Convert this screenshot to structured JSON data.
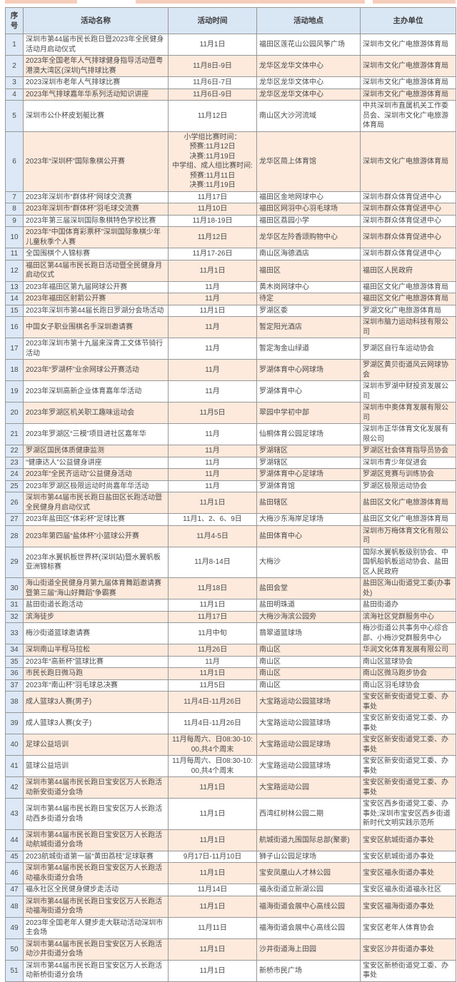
{
  "colors": {
    "banner": "#f6cdbb",
    "header_bg": "#d9e6f4",
    "index_bg": "#dce8f6",
    "stripe_bg": "#fdeadd",
    "border": "#979797",
    "text": "#4a4a4a"
  },
  "table": {
    "headers": {
      "no": "序号",
      "name": "活动名称",
      "time": "活动时间",
      "place": "活动地点",
      "org": "主办单位"
    },
    "rows": [
      {
        "no": "1",
        "name": "深圳市第44届市民长跑日暨2023年全民健身活动月启动仪式",
        "time": "11月1日",
        "place": "福田区莲花山公园风筝广场",
        "org": "深圳市文化广电旅游体育局"
      },
      {
        "no": "2",
        "name": "2023年全国老年人气排球健身指导活动暨粤港澳大湾区(深圳)气排球比赛",
        "time": "11月8日-9日",
        "place": "龙华区龙华文体中心",
        "org": "深圳市文化广电旅游体育局"
      },
      {
        "no": "3",
        "name": "2023深圳市老年人气排球比赛",
        "time": "11月6日-7日",
        "place": "龙华区龙华文体中心",
        "org": "深圳市文化广电旅游体育局"
      },
      {
        "no": "4",
        "name": "2023年气排球嘉年华系列活动知识讲座",
        "time": "11月6日-9日",
        "place": "龙华区龙华文体中心",
        "org": "深圳市文化广电旅游体育局"
      },
      {
        "no": "5",
        "name": "深圳市公仆杯皮划艇比赛",
        "time": "11月12日",
        "place": "南山区大沙河流域",
        "org": "中共深圳市直属机关工作委员会、深圳市文化广电旅游体育局"
      },
      {
        "no": "6",
        "name": "2023年“深圳杯”国际象棋公开赛",
        "time": "小学组比赛时间：\n预赛:11月12日\n决赛:11月19日\n中学组、成人组比赛时间:\n预赛:11月11日\n决赛:11月19日",
        "place": "龙华区简上体育馆",
        "org": "深圳市文化广电旅游体育局"
      },
      {
        "no": "7",
        "name": "2023年深圳市“群体杯”网球交流赛",
        "time": "11月17日",
        "place": "福田区金地网球中心",
        "org": "深圳市群众体育促进中心"
      },
      {
        "no": "8",
        "name": "2023年深圳市“群体杯”羽毛球交流赛",
        "time": "11月10日",
        "place": "福田区网羽中心羽毛球场",
        "org": "深圳市群众体育促进中心"
      },
      {
        "no": "9",
        "name": "2023年第三届深圳国际象棋特色学校比赛",
        "time": "11月18-19日",
        "place": "福田区荔园小学",
        "org": "深圳市群众体育促进中心"
      },
      {
        "no": "10",
        "name": "2023年“中国体育彩票杯”深圳国际象棋少年儿童秋季个人赛",
        "time": "11月12日",
        "place": "龙华区左阾香颂购物中心",
        "org": "深圳市群众体育促进中心"
      },
      {
        "no": "11",
        "name": "全国围棋个人锦标赛",
        "time": "11月17-26日",
        "place": "南山区海德酒店",
        "org": "深圳市群众体育促进中心"
      },
      {
        "no": "12",
        "name": "福田区第44届市民长跑日活动暨全民健身月启动仪式",
        "time": "11月1日",
        "place": "福田区",
        "org": "福田区人民政府"
      },
      {
        "no": "13",
        "name": "2023年福田区第九届网球公开赛",
        "time": "11月",
        "place": "黄木岗网球中心",
        "org": "福田区文化广电旅游体育局"
      },
      {
        "no": "14",
        "name": "2023年福田区射箭公开赛",
        "time": "11月",
        "place": "待定",
        "org": "福田区文化广电旅游体育局"
      },
      {
        "no": "15",
        "name": "2023年深圳市第44届长跑日罗湖分会场活动",
        "time": "11月1日",
        "place": "罗湖区委",
        "org": "罗湖文化广电旅游体育局"
      },
      {
        "no": "16",
        "name": "中国女子职业围棋名手深圳邀请赛",
        "time": "11月",
        "place": "暂定阳光酒店",
        "org": "深圳市脑力运动科技有限公司"
      },
      {
        "no": "17",
        "name": "2023年深圳市第十九届来深青工文体节骑行活动",
        "time": "11月",
        "place": "暂定淘金山绿道",
        "org": "罗湖区自行车运动协会"
      },
      {
        "no": "18",
        "name": "2023年“罗湖杯”业余网球公开赛活动",
        "time": "11月",
        "place": "罗湖体育中心网球场",
        "org": "罗湖区黄贝街道风云网球协会"
      },
      {
        "no": "19",
        "name": "2023年深圳高新企业体育嘉年华活动",
        "time": "11月",
        "place": "罗湖体育中心",
        "org": "深圳市罗湖中财投资发展公司"
      },
      {
        "no": "20",
        "name": "2023年罗湖区机关职工趣味运动会",
        "time": "11月5日",
        "place": "翠园中学初中部",
        "org": "深圳市中奥体育发展有限公司"
      },
      {
        "no": "21",
        "name": "2023年罗湖区“三模”项目进社区嘉年华",
        "time": "11月",
        "place": "仙桐体育公园足球场",
        "org": "深圳市正华体育文化发展有限公司"
      },
      {
        "no": "22",
        "name": "罗湖区国民体质健康监测",
        "time": "11月",
        "place": "罗湖辖区",
        "org": "罗湖区社会体育指导员协会"
      },
      {
        "no": "23",
        "name": "“健康达人”公益健身讲座",
        "time": "11月",
        "place": "罗湖辖区",
        "org": "深圳市青少年促进会"
      },
      {
        "no": "24",
        "name": "2023年“全民齐运动”公益健身活动",
        "time": "11月",
        "place": "罗湖体育中心足球场",
        "org": "罗湖区竞赛与训练协会"
      },
      {
        "no": "25",
        "name": "2023年罗湖区极限运动时尚嘉年华活动",
        "time": "11月",
        "place": "罗湖体育馆",
        "org": "罗湖区极限运动协会"
      },
      {
        "no": "26",
        "name": "深圳市第44届市民长跑日盐田区长跑活动暨全民健身月启动仪式",
        "time": "11月1日",
        "place": "盐田辖区",
        "org": "盐田区文化广电旅游体育局"
      },
      {
        "no": "27",
        "name": "2023年盐田区“体彩杯”足球比赛",
        "time": "11月1、2、6、9日",
        "place": "大梅沙东海岸足球场",
        "org": "盐田区文化广电旅游体育局"
      },
      {
        "no": "28",
        "name": "2023年第四届“盐体杯”小篮球公开赛",
        "time": "11月4-5日",
        "place": "盐田体育中心",
        "org": "深圳市万梅体育文化有限公司"
      },
      {
        "no": "29",
        "name": "2023年水翼帆板世界杯(深圳站)暨水翼帆板亚洲锦标赛",
        "time": "11月8-14日",
        "place": "大梅沙",
        "org": "国际水翼帆板级别协会、中国帆船帆板运动协会、盐田区人民政府"
      },
      {
        "no": "30",
        "name": "海山街道全民健身月第九届体育舞蹈邀请赛暨第三届“海山好舞蹈”争霸赛",
        "time": "11月18日",
        "place": "盐田会堂",
        "org": "盐田区海山街道党工委(办事处)"
      },
      {
        "no": "31",
        "name": "盐田街道长跑活动",
        "time": "11月1日",
        "place": "盐田明珠道",
        "org": "盐田街道办"
      },
      {
        "no": "32",
        "name": "滨海徒步",
        "time": "11月17日",
        "place": "大梅沙海滨公园旁",
        "org": "滨海社区党群服务中心"
      },
      {
        "no": "33",
        "name": "梅沙街道篮球邀请赛",
        "time": "11月中旬",
        "place": "翡翠道篮球场",
        "org": "梅沙街道公共事务中心综合部、小梅沙党群服务中心"
      },
      {
        "no": "34",
        "name": "深圳南山半程马拉松",
        "time": "11月26日",
        "place": "南山区",
        "org": "华润文化体育发展有限公司"
      },
      {
        "no": "35",
        "name": "2023年“高新杯”篮球比赛",
        "time": "11月",
        "place": "南山区",
        "org": "南山区篮球协会"
      },
      {
        "no": "36",
        "name": "市民长跑日微马跑",
        "time": "11月1日",
        "place": "南山区",
        "org": "南山区微马跑步协会"
      },
      {
        "no": "37",
        "name": "2023年“南山杯”羽毛球总决赛",
        "time": "11月5日",
        "place": "南山区",
        "org": "南山区羽毛球协会"
      },
      {
        "no": "38",
        "name": "成人篮球3人赛(男子)",
        "time": "11月4日-11月26日",
        "place": "大宝路运动公园篮球场",
        "org": "宝安区新安街道党工委、办事处"
      },
      {
        "no": "39",
        "name": "成人篮球3人赛(女子)",
        "time": "11月4日-11月26日",
        "place": "大宝路运动公园篮球场",
        "org": "宝安区新安街道党工委、办事处"
      },
      {
        "no": "40",
        "name": "足球公益培训",
        "time": "11月每周六、日08:30-10:00,共4个周末",
        "place": "大宝路运动公园足球场",
        "org": "宝安区新安街道党工委、办事处"
      },
      {
        "no": "41",
        "name": "篮球公益培训",
        "time": "11月每周六、日08:30-10:00,共4个周末",
        "place": "大宝路运动公园篮球场",
        "org": "宝安区新安街道党工委、办事处"
      },
      {
        "no": "42",
        "name": "深圳市第44届市民长跑日宝安区万人长跑活动新安街道分会场",
        "time": "11月1日",
        "place": "大宝路运动公园",
        "org": "宝安区新安街道党工委、办事处"
      },
      {
        "no": "43",
        "name": "深圳市第44届市民长跑日宝安区万人长跑活动西乡街道分会场",
        "time": "11月1日",
        "place": "西湾红树林公园二期",
        "org": "宝安区西乡街道党工委、办事处;深圳市宝安区西乡街道新时代文明实践示范所"
      },
      {
        "no": "44",
        "name": "深圳市第44届市民长跑日宝安区万人长跑活动航城街道分会场",
        "time": "11月1日",
        "place": "航城街道九围国际总部(聚豪)",
        "org": "宝安区航城街道办事处"
      },
      {
        "no": "45",
        "name": "2023航城街道第一届“黄田荔枝”足球联赛",
        "time": "9月17日-11月10日",
        "place": "狮子山公园足球场",
        "org": "宝安区航城街道办事处"
      },
      {
        "no": "46",
        "name": "深圳市第44届市民长跑日宝安区万人长跑活动福永街道分会场",
        "time": "11月1日",
        "place": "宝安凤凰山人才林公园",
        "org": "宝安区福永街道办事处"
      },
      {
        "no": "47",
        "name": "福永社区全民健身健步走活动",
        "time": "11月14日",
        "place": "福永街道立新湖公园",
        "org": "宝安区福永街道福永社区"
      },
      {
        "no": "48",
        "name": "深圳市第44届市民长跑日宝安区万人长跑活动福海街道分会场",
        "time": "11月1日",
        "place": "福海街道会展中心高线公园",
        "org": "宝安区福海街道办事处"
      },
      {
        "no": "49",
        "name": "2023年全国老年人健步走大联动活动深圳市主会场",
        "time": "11月11日",
        "place": "福海街道会展中心高线公园",
        "org": "宝安区老年人体育协会"
      },
      {
        "no": "50",
        "name": "深圳市第44届市民长跑日宝安区万人长跑活动沙井街道分会场",
        "time": "11月1日",
        "place": "沙井街道海上田园",
        "org": "宝安区沙井街道办事处"
      },
      {
        "no": "51",
        "name": "深圳市第44届市民长跑日宝安区万人长跑活动新桥街道分会场",
        "time": "11月1日",
        "place": "新桥市民广场",
        "org": "宝安区新桥街道党工委、办事处"
      }
    ]
  }
}
